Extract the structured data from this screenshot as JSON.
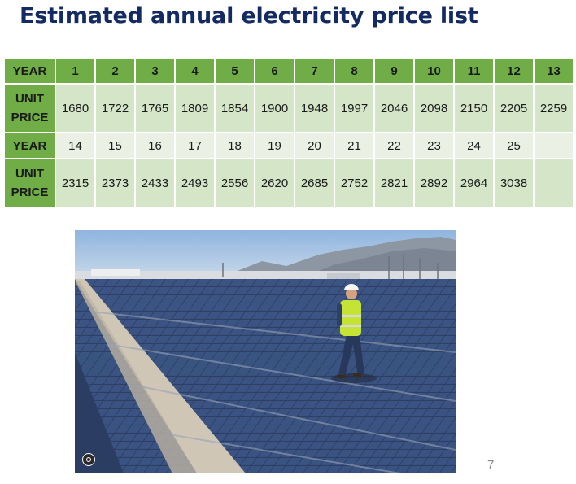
{
  "title": "Estimated annual electricity price list",
  "table": {
    "year_label": "YEAR",
    "unit_label_1": "UNIT",
    "unit_label_2": "PRICE",
    "years_1": [
      "1",
      "2",
      "3",
      "4",
      "5",
      "6",
      "7",
      "8",
      "9",
      "10",
      "11",
      "12",
      "13"
    ],
    "prices_1": [
      "1680",
      "1722",
      "1765",
      "1809",
      "1854",
      "1900",
      "1948",
      "1997",
      "2046",
      "2098",
      "2150",
      "2205",
      "2259"
    ],
    "years_2": [
      "14",
      "15",
      "16",
      "17",
      "18",
      "19",
      "20",
      "21",
      "22",
      "23",
      "24",
      "25",
      ""
    ],
    "prices_2": [
      "2315",
      "2373",
      "2433",
      "2493",
      "2556",
      "2620",
      "2685",
      "2752",
      "2821",
      "2892",
      "2964",
      "3038",
      ""
    ]
  },
  "page_number": "7",
  "colors": {
    "title": "#142a63",
    "header_green": "#70ad47",
    "cell_dark": "#d4e5c8",
    "cell_light": "#eaf1e4"
  },
  "icons": {
    "photo_overlay": "lens-icon"
  }
}
